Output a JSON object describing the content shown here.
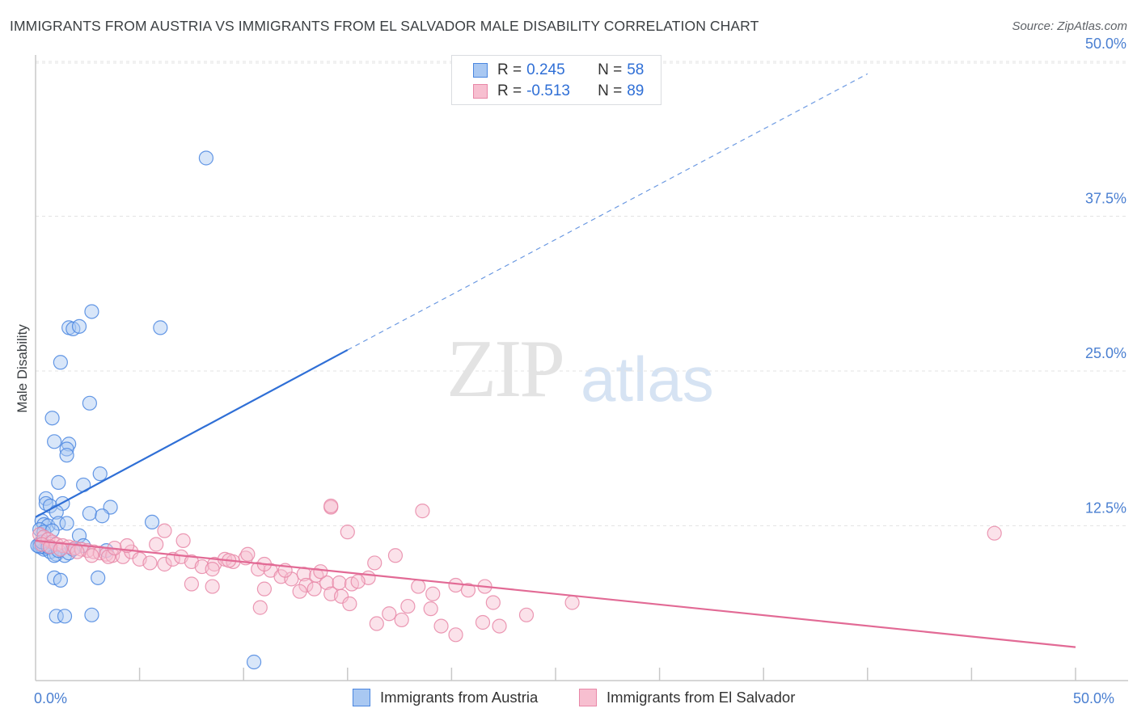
{
  "title": "IMMIGRANTS FROM AUSTRIA VS IMMIGRANTS FROM EL SALVADOR MALE DISABILITY CORRELATION CHART",
  "source": "Source: ZipAtlas.com",
  "watermark": {
    "zip": "ZIP",
    "atlas": "atlas"
  },
  "colors": {
    "blue": "#4a86e0",
    "blue_fill": "#a9c8f2",
    "blue_line": "#2f6fd6",
    "pink": "#e887a7",
    "pink_fill": "#f7bfd0",
    "pink_line": "#e26a95",
    "axis_label": "#4a7fd1",
    "grid": "#e3e3e3"
  },
  "legend_top": {
    "rows": [
      {
        "r_label": "R =",
        "r_value": "0.245",
        "n_label": "N =",
        "n_value": "58",
        "color": "blue"
      },
      {
        "r_label": "R =",
        "r_value": "-0.513",
        "n_label": "N =",
        "n_value": "89",
        "color": "pink"
      }
    ]
  },
  "legend_bottom": [
    {
      "label": "Immigrants from Austria",
      "color": "blue"
    },
    {
      "label": "Immigrants from El Salvador",
      "color": "pink"
    }
  ],
  "chart_data": {
    "type": "scatter",
    "xlabel": "",
    "ylabel": "Male Disability",
    "xlim": [
      0,
      50
    ],
    "ylim": [
      0,
      52
    ],
    "x_tick_labels": [
      {
        "value": 0,
        "label": "0.0%"
      },
      {
        "value": 50,
        "label": "50.0%"
      }
    ],
    "y_tick_labels": [
      {
        "value": 12.5,
        "label": "12.5%"
      },
      {
        "value": 25.0,
        "label": "25.0%"
      },
      {
        "value": 37.5,
        "label": "37.5%"
      },
      {
        "value": 50.0,
        "label": "50.0%"
      }
    ],
    "x_minor_ticks": [
      5,
      10,
      15,
      20,
      25,
      30,
      35,
      40,
      45,
      50
    ],
    "grid": true,
    "series": [
      {
        "name": "Immigrants from Austria",
        "color": "blue",
        "R": 0.245,
        "N": 58,
        "trend": {
          "x0": 0,
          "y0": 13.2,
          "x1": 15,
          "y1": 26.7,
          "dash_to_x": 40,
          "dash_to_y": 49.0
        },
        "points": [
          [
            8.2,
            42.2
          ],
          [
            2.7,
            29.8
          ],
          [
            1.6,
            28.5
          ],
          [
            1.8,
            28.4
          ],
          [
            2.1,
            28.6
          ],
          [
            6.0,
            28.5
          ],
          [
            1.2,
            25.7
          ],
          [
            2.6,
            22.4
          ],
          [
            0.8,
            21.2
          ],
          [
            0.9,
            19.3
          ],
          [
            1.6,
            19.1
          ],
          [
            1.5,
            18.7
          ],
          [
            1.5,
            18.2
          ],
          [
            3.1,
            16.7
          ],
          [
            1.1,
            16.0
          ],
          [
            2.3,
            15.8
          ],
          [
            0.5,
            14.7
          ],
          [
            0.5,
            14.3
          ],
          [
            0.7,
            14.1
          ],
          [
            1.3,
            14.3
          ],
          [
            3.6,
            14.0
          ],
          [
            1.0,
            13.6
          ],
          [
            2.6,
            13.5
          ],
          [
            3.2,
            13.3
          ],
          [
            0.3,
            12.9
          ],
          [
            0.4,
            12.6
          ],
          [
            0.6,
            12.5
          ],
          [
            1.1,
            12.7
          ],
          [
            1.5,
            12.7
          ],
          [
            5.6,
            12.8
          ],
          [
            0.2,
            12.2
          ],
          [
            0.4,
            12.0
          ],
          [
            0.8,
            12.1
          ],
          [
            2.1,
            11.7
          ],
          [
            0.2,
            11.0
          ],
          [
            0.3,
            10.8
          ],
          [
            0.4,
            10.6
          ],
          [
            0.5,
            10.7
          ],
          [
            0.7,
            10.4
          ],
          [
            1.0,
            10.2
          ],
          [
            1.4,
            10.1
          ],
          [
            1.6,
            10.3
          ],
          [
            0.9,
            10.1
          ],
          [
            3.4,
            10.5
          ],
          [
            2.3,
            10.9
          ],
          [
            0.9,
            8.3
          ],
          [
            1.2,
            8.1
          ],
          [
            3.0,
            8.3
          ],
          [
            1.0,
            5.2
          ],
          [
            1.4,
            5.2
          ],
          [
            2.7,
            5.3
          ],
          [
            10.5,
            1.5
          ],
          [
            0.2,
            10.8
          ],
          [
            0.1,
            10.9
          ],
          [
            0.3,
            11.2
          ],
          [
            1.8,
            10.6
          ],
          [
            0.6,
            10.8
          ],
          [
            1.1,
            10.5
          ]
        ]
      },
      {
        "name": "Immigrants from El Salvador",
        "color": "pink",
        "R": -0.513,
        "N": 89,
        "trend": {
          "x0": 0,
          "y0": 11.3,
          "x1": 50,
          "y1": 2.7
        },
        "points": [
          [
            0.2,
            11.8
          ],
          [
            0.4,
            11.6
          ],
          [
            0.6,
            11.4
          ],
          [
            0.8,
            11.2
          ],
          [
            1.0,
            11.0
          ],
          [
            1.3,
            10.9
          ],
          [
            1.6,
            10.8
          ],
          [
            1.9,
            10.7
          ],
          [
            2.2,
            10.6
          ],
          [
            2.5,
            10.5
          ],
          [
            2.8,
            10.4
          ],
          [
            3.1,
            10.3
          ],
          [
            3.4,
            10.2
          ],
          [
            3.7,
            10.1
          ],
          [
            0.3,
            11.0
          ],
          [
            0.7,
            10.8
          ],
          [
            1.2,
            10.6
          ],
          [
            2.0,
            10.4
          ],
          [
            2.7,
            10.1
          ],
          [
            3.5,
            10.0
          ],
          [
            4.2,
            10.0
          ],
          [
            4.6,
            10.4
          ],
          [
            5.0,
            9.8
          ],
          [
            5.5,
            9.5
          ],
          [
            6.2,
            9.4
          ],
          [
            6.6,
            9.8
          ],
          [
            7.0,
            10.0
          ],
          [
            7.5,
            9.6
          ],
          [
            8.0,
            9.2
          ],
          [
            8.6,
            9.4
          ],
          [
            9.1,
            9.8
          ],
          [
            9.5,
            9.6
          ],
          [
            10.1,
            9.9
          ],
          [
            10.7,
            9.0
          ],
          [
            11.3,
            8.9
          ],
          [
            11.8,
            8.4
          ],
          [
            12.3,
            8.2
          ],
          [
            12.9,
            8.6
          ],
          [
            13.5,
            8.5
          ],
          [
            14.0,
            7.9
          ],
          [
            14.6,
            7.9
          ],
          [
            15.2,
            7.8
          ],
          [
            16.0,
            8.3
          ],
          [
            5.8,
            11.0
          ],
          [
            6.2,
            12.1
          ],
          [
            7.1,
            11.3
          ],
          [
            8.5,
            9.0
          ],
          [
            9.3,
            9.7
          ],
          [
            10.2,
            10.2
          ],
          [
            11.0,
            9.4
          ],
          [
            12.0,
            8.9
          ],
          [
            13.0,
            7.7
          ],
          [
            13.4,
            7.4
          ],
          [
            14.2,
            7.0
          ],
          [
            15.5,
            8.0
          ],
          [
            16.3,
            9.5
          ],
          [
            17.3,
            10.1
          ],
          [
            18.4,
            7.6
          ],
          [
            19.1,
            7.0
          ],
          [
            20.2,
            7.7
          ],
          [
            20.8,
            7.3
          ],
          [
            21.6,
            7.6
          ],
          [
            7.5,
            7.8
          ],
          [
            8.5,
            7.6
          ],
          [
            11.0,
            7.4
          ],
          [
            12.7,
            7.2
          ],
          [
            13.7,
            8.8
          ],
          [
            14.7,
            6.8
          ],
          [
            17.9,
            6.0
          ],
          [
            19.0,
            5.8
          ],
          [
            22.0,
            6.3
          ],
          [
            23.6,
            5.3
          ],
          [
            25.8,
            6.3
          ],
          [
            15.1,
            6.2
          ],
          [
            10.8,
            5.9
          ],
          [
            17.0,
            5.4
          ],
          [
            16.4,
            4.6
          ],
          [
            17.6,
            4.9
          ],
          [
            19.5,
            4.4
          ],
          [
            21.5,
            4.7
          ],
          [
            22.3,
            4.4
          ],
          [
            20.2,
            3.7
          ],
          [
            14.2,
            14.0
          ],
          [
            14.2,
            14.1
          ],
          [
            18.6,
            13.7
          ],
          [
            15.0,
            12.0
          ],
          [
            46.1,
            11.9
          ],
          [
            3.8,
            10.7
          ],
          [
            4.4,
            10.9
          ]
        ]
      }
    ]
  }
}
